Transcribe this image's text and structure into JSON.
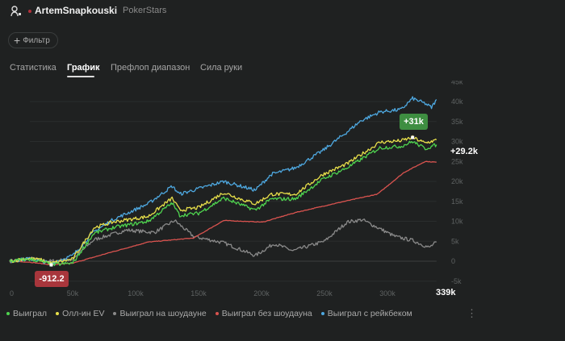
{
  "header": {
    "username": "ArtemSnapkouski",
    "room": "PokerStars"
  },
  "filter_label": "Фильтр",
  "tabs": [
    {
      "label": "Статистика",
      "active": false
    },
    {
      "label": "График",
      "active": true
    },
    {
      "label": "Префлоп диапазон",
      "active": false
    },
    {
      "label": "Сила руки",
      "active": false
    }
  ],
  "chart_data": {
    "type": "line",
    "xlabel": "",
    "ylabel": "",
    "xlim": [
      0,
      339
    ],
    "ylim": [
      -5,
      45
    ],
    "x_unit": "k hands",
    "y_unit": "k",
    "x_ticks": [
      "0",
      "50k",
      "100k",
      "150k",
      "200k",
      "250k",
      "300k"
    ],
    "x_tick_values": [
      0,
      50,
      100,
      150,
      200,
      250,
      300
    ],
    "x_last_label": "339k",
    "y_ticks": [
      "-5k",
      "0",
      "5k",
      "10k",
      "15k",
      "20k",
      "25k",
      "30k",
      "35k",
      "40k",
      "45k"
    ],
    "y_tick_values": [
      -5,
      0,
      5,
      10,
      15,
      20,
      25,
      30,
      35,
      40,
      45
    ],
    "grid": true,
    "annotations": {
      "max_label": "+31k",
      "max_point": [
        320,
        31
      ],
      "min_label": "-912.2",
      "min_point": [
        33,
        -0.912
      ],
      "last_label": "+29.2k"
    },
    "legend_position": "bottom-left",
    "series": [
      {
        "name": "Выиграл",
        "color": "#4fd44f",
        "x": [
          0,
          15,
          25,
          33,
          50,
          67,
          82,
          110,
          129,
          135,
          150,
          170,
          185,
          195,
          208,
          227,
          249,
          268,
          294,
          311,
          320,
          330,
          339
        ],
        "y": [
          0,
          0.5,
          0,
          -0.9,
          -0.5,
          7,
          8.4,
          10,
          14.6,
          11.5,
          12,
          15.8,
          14,
          12.8,
          15.6,
          15.6,
          20.6,
          23.4,
          28.4,
          28.8,
          30,
          28.2,
          29.2
        ]
      },
      {
        "name": "Олл-ин EV",
        "color": "#e8e04a",
        "x": [
          0,
          15,
          25,
          33,
          50,
          67,
          82,
          110,
          129,
          135,
          150,
          170,
          185,
          195,
          208,
          227,
          249,
          268,
          294,
          311,
          320,
          330,
          339
        ],
        "y": [
          0,
          0.7,
          0.3,
          -0.5,
          0.5,
          8.4,
          9.8,
          11.2,
          15.8,
          12.8,
          13.4,
          17.2,
          15.4,
          14.4,
          16.8,
          16.8,
          21.8,
          24.4,
          29.8,
          30.2,
          31,
          29.6,
          30.4
        ]
      },
      {
        "name": "Выиграл на шоудауне",
        "color": "#8a8a8a",
        "x": [
          0,
          15,
          25,
          33,
          50,
          67,
          93,
          115,
          131,
          146,
          170,
          195,
          210,
          225,
          250,
          268,
          280,
          306,
          320,
          333,
          339
        ],
        "y": [
          0,
          0.8,
          0.2,
          0,
          0.5,
          5.4,
          7.8,
          7.2,
          10.2,
          6.2,
          4.6,
          1.4,
          4.4,
          2.6,
          5,
          9.8,
          10.4,
          6.2,
          5.2,
          3.4,
          4.8
        ]
      },
      {
        "name": "Выиграл без шоудауна",
        "color": "#d9534f",
        "x": [
          0,
          15,
          33,
          50,
          80,
          110,
          146,
          170,
          201,
          227,
          263,
          292,
          313,
          330,
          339
        ],
        "y": [
          0,
          -0.2,
          -0.9,
          -0.5,
          2.2,
          4.8,
          5.8,
          10.2,
          9.8,
          12.2,
          14.8,
          16.8,
          22.2,
          25,
          24.8
        ]
      },
      {
        "name": "Выиграл с рейкбеком",
        "color": "#4ea8e0",
        "x": [
          0,
          15,
          33,
          50,
          67,
          82,
          110,
          129,
          135,
          170,
          195,
          208,
          227,
          249,
          268,
          279,
          294,
          311,
          320,
          330,
          335,
          339
        ],
        "y": [
          0,
          0.6,
          -0.5,
          1.4,
          7.4,
          10.4,
          14.4,
          18.8,
          16.8,
          20,
          17.8,
          21.8,
          23.4,
          27.8,
          32.4,
          35.2,
          37.4,
          38,
          40.8,
          39.5,
          38.5,
          40.5
        ]
      }
    ]
  },
  "legend_more": "⋮"
}
